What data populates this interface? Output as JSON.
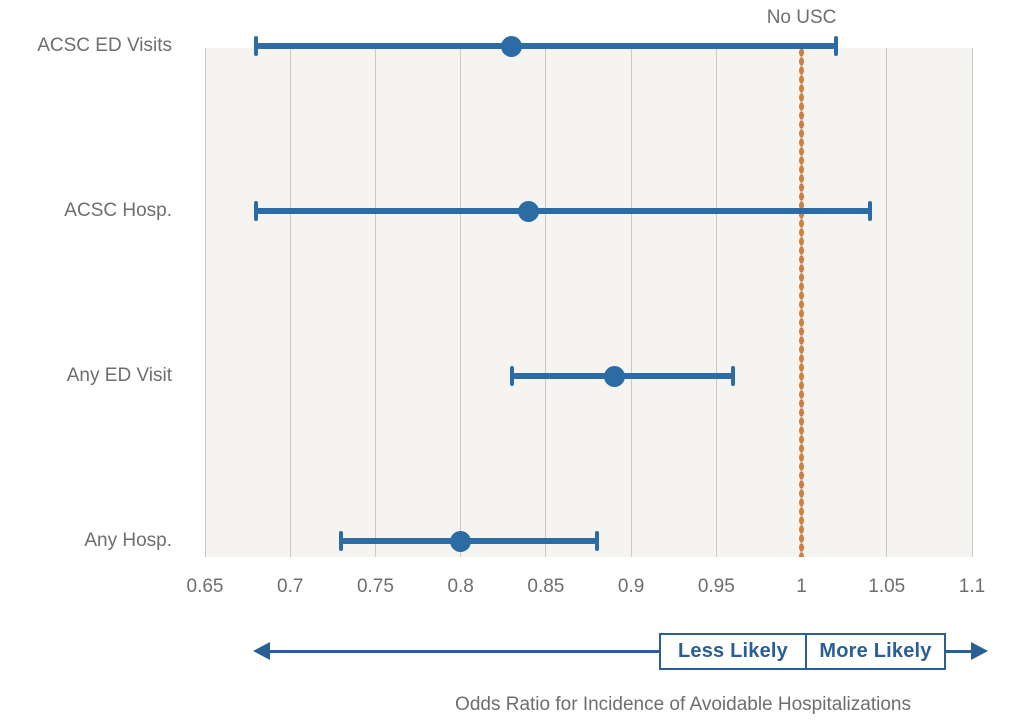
{
  "chart_data": {
    "type": "scatter",
    "subtype": "forest-plot-odds-ratios",
    "title": "",
    "xlabel": "Odds Ratio for Incidence of Avoidable Hospitalizations",
    "ylabel": "",
    "xlim": [
      0.65,
      1.1
    ],
    "grid": "vertical-only",
    "x_ticks": [
      {
        "value": 0.65,
        "label": "0.65"
      },
      {
        "value": 0.7,
        "label": "0.7"
      },
      {
        "value": 0.75,
        "label": "0.75"
      },
      {
        "value": 0.8,
        "label": "0.8"
      },
      {
        "value": 0.85,
        "label": "0.85"
      },
      {
        "value": 0.9,
        "label": "0.9"
      },
      {
        "value": 0.95,
        "label": "0.95"
      },
      {
        "value": 1.0,
        "label": "1"
      },
      {
        "value": 1.05,
        "label": "1.05"
      },
      {
        "value": 1.1,
        "label": "1.1"
      }
    ],
    "rows": [
      {
        "label": "ACSC ED Visits",
        "estimate": 0.83,
        "ci_low": 0.68,
        "ci_high": 1.02
      },
      {
        "label": "ACSC Hosp.",
        "estimate": 0.84,
        "ci_low": 0.68,
        "ci_high": 1.04
      },
      {
        "label": "Any ED Visit",
        "estimate": 0.89,
        "ci_low": 0.83,
        "ci_high": 0.96
      },
      {
        "label": "Any Hosp.",
        "estimate": 0.8,
        "ci_low": 0.73,
        "ci_high": 0.88
      }
    ],
    "reference_line": {
      "value": 1.0,
      "label": "No USC",
      "style": "dotted",
      "color": "#cd8045"
    },
    "direction_legend": {
      "left_label": "Less Likely",
      "right_label": "More Likely",
      "divider_at_value": 1.0
    },
    "colors": {
      "marker_blue": "#2b6ca5",
      "annotation_blue": "#2a5f96",
      "grid_gray": "#c9c9c9",
      "plot_background": "#f5f4f0",
      "text_gray": "#6e6e6e"
    }
  }
}
